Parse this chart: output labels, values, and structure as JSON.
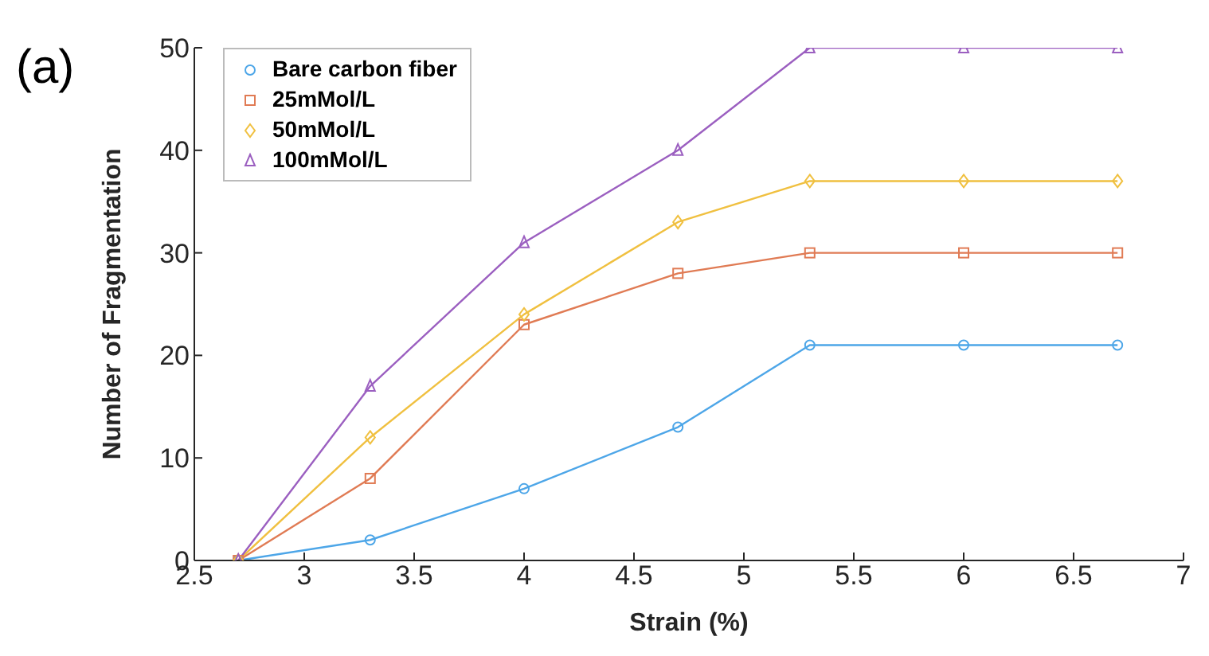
{
  "chart_data": {
    "type": "line",
    "xlabel": "Strain (%)",
    "ylabel": "Number of Fragmentation",
    "annotations": [
      "(a)"
    ],
    "x": [
      2.7,
      3.3,
      4,
      4.7,
      5.3,
      6,
      6.7
    ],
    "series": [
      {
        "name": "Bare carbon fiber",
        "color": "#4da6e8",
        "marker": "circle",
        "values": [
          0,
          2,
          7,
          13,
          21,
          21,
          21
        ]
      },
      {
        "name": "25mMol/L",
        "color": "#e07b54",
        "marker": "square",
        "values": [
          0,
          8,
          23,
          28,
          30,
          30,
          30
        ]
      },
      {
        "name": "50mMol/L",
        "color": "#f0c040",
        "marker": "diamond",
        "values": [
          0,
          12,
          24,
          33,
          37,
          37,
          37
        ]
      },
      {
        "name": "100mMol/L",
        "color": "#9b5fc0",
        "marker": "triangle",
        "values": [
          0,
          17,
          31,
          40,
          50,
          50,
          50
        ]
      }
    ],
    "xlim": [
      2.5,
      7
    ],
    "xticks": [
      2.5,
      3,
      3.5,
      4,
      4.5,
      5,
      5.5,
      6,
      6.5,
      7
    ],
    "ylim": [
      0,
      50
    ],
    "yticks": [
      0,
      10,
      20,
      30,
      40,
      50
    ],
    "grid": false,
    "legend": "top left",
    "line_style": "solid"
  }
}
